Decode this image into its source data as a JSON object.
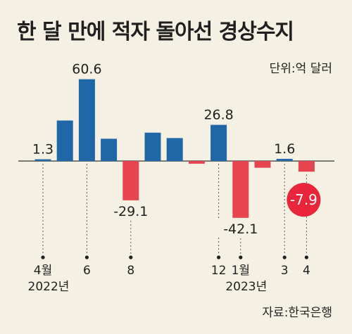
{
  "title": "한 달 만에 적자 돌아선 경상수지",
  "unit_label": "단위:억 달러",
  "source_label": "자료:한국은행",
  "colors": {
    "positive": "#1f67a6",
    "negative": "#e64550",
    "highlight": "#e8253a",
    "background": "#f4f0e4"
  },
  "chart_data": {
    "type": "bar",
    "categories": [
      "2022-04",
      "2022-05",
      "2022-06",
      "2022-07",
      "2022-08",
      "2022-09",
      "2022-10",
      "2022-11",
      "2022-12",
      "2023-01",
      "2023-02",
      "2023-03",
      "2023-04"
    ],
    "values": [
      1.3,
      30.0,
      60.6,
      16.5,
      -29.1,
      21.0,
      17.0,
      -2.0,
      26.8,
      -42.1,
      -5.0,
      1.6,
      -7.9
    ],
    "value_labels": [
      {
        "index": 0,
        "text": "1.3"
      },
      {
        "index": 2,
        "text": "60.6"
      },
      {
        "index": 4,
        "text": "-29.1"
      },
      {
        "index": 8,
        "text": "26.8"
      },
      {
        "index": 9,
        "text": "-42.1"
      },
      {
        "index": 11,
        "text": "1.6"
      },
      {
        "index": 12,
        "text": "-7.9",
        "highlight": true
      }
    ],
    "x_ticks": [
      {
        "index": 0,
        "label": "4월"
      },
      {
        "index": 2,
        "label": "6"
      },
      {
        "index": 4,
        "label": "8"
      },
      {
        "index": 8,
        "label": "12"
      },
      {
        "index": 9,
        "label": "1월"
      },
      {
        "index": 11,
        "label": "3"
      },
      {
        "index": 12,
        "label": "4"
      }
    ],
    "year_labels": [
      {
        "index": 0,
        "label": "2022년"
      },
      {
        "index": 9,
        "label": "2023년"
      }
    ],
    "ylim": [
      -50,
      70
    ],
    "grid": false,
    "legend": "none"
  }
}
